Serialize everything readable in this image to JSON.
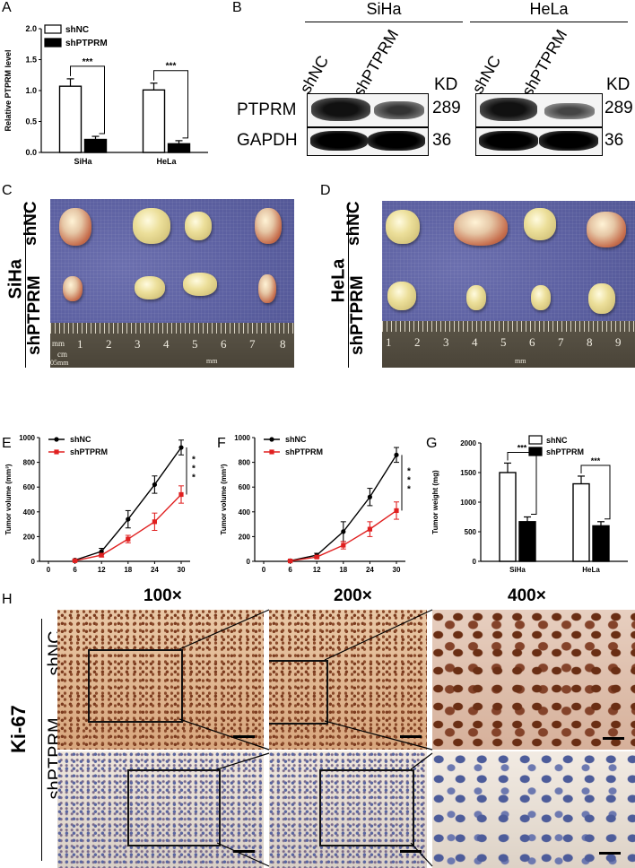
{
  "panels": {
    "A": "A",
    "B": "B",
    "C": "C",
    "D": "D",
    "E": "E",
    "F": "F",
    "G": "G",
    "H": "H"
  },
  "panel_a": {
    "ylabel": "Relative PTPRM level",
    "legend": [
      "shNC",
      "shPTPRM"
    ],
    "sig": [
      "***",
      "***"
    ]
  },
  "panel_b": {
    "cell_lines": [
      "SiHa",
      "HeLa"
    ],
    "lane_labels": [
      "shNC",
      "shPTPRM"
    ],
    "kd_label": "KD",
    "proteins": [
      "PTPRM",
      "GAPDH"
    ],
    "sizes": [
      "289",
      "36"
    ]
  },
  "panel_c": {
    "cell_line": "SiHa",
    "rows": [
      "shNC",
      "shPTPRM"
    ],
    "ruler_numbers": [
      "1",
      "2",
      "3",
      "4",
      "5",
      "6",
      "7",
      "8"
    ],
    "ruler_marks": [
      "mm",
      "cm",
      "05mm",
      "mm"
    ]
  },
  "panel_d": {
    "cell_line": "HeLa",
    "rows": [
      "shNC",
      "shPTPRM"
    ],
    "ruler_numbers": [
      "1",
      "2",
      "3",
      "4",
      "5",
      "6",
      "7",
      "8",
      "9"
    ],
    "ruler_marks": [
      "mm"
    ]
  },
  "panel_e": {
    "ylabel": "Tumor volume (mm³)",
    "legend": [
      "shNC",
      "shPTPRM"
    ],
    "sig": "***"
  },
  "panel_f": {
    "ylabel": "Tumor volume (mm³)",
    "legend": [
      "shNC",
      "shPTPRM"
    ],
    "sig": "***"
  },
  "panel_g": {
    "ylabel": "Tumor weight (mg)",
    "legend": [
      "shNC",
      "shPTPRM"
    ],
    "sig": [
      "***",
      "***"
    ]
  },
  "panel_h": {
    "magnifications": [
      "100×",
      "200×",
      "400×"
    ],
    "stain": "Ki-67",
    "rows": [
      "shNC",
      "shPTPRM"
    ]
  },
  "chart_data": [
    {
      "id": "A",
      "type": "bar",
      "categories": [
        "SiHa",
        "HeLa"
      ],
      "series": [
        {
          "name": "shNC",
          "values": [
            1.07,
            1.01
          ],
          "errors": [
            0.12,
            0.11
          ]
        },
        {
          "name": "shPTPRM",
          "values": [
            0.21,
            0.14
          ],
          "errors": [
            0.05,
            0.05
          ]
        }
      ],
      "ylabel": "Relative PTPRM level",
      "ylim": [
        0,
        2.0
      ],
      "yticks": [
        "0.0",
        "0.5",
        "1.0",
        "1.5",
        "2.0"
      ],
      "colors": {
        "shNC": "#ffffff",
        "shPTPRM": "#000000"
      }
    },
    {
      "id": "E",
      "type": "line",
      "x": [
        0,
        6,
        12,
        18,
        24,
        30
      ],
      "xticks": [
        "0",
        "6",
        "12",
        "18",
        "24",
        "30"
      ],
      "series": [
        {
          "name": "shNC",
          "x": [
            6,
            12,
            18,
            24,
            30
          ],
          "values": [
            10,
            80,
            340,
            620,
            920
          ],
          "errors": [
            5,
            25,
            70,
            70,
            60
          ],
          "color": "#000000"
        },
        {
          "name": "shPTPRM",
          "x": [
            6,
            12,
            18,
            24,
            30
          ],
          "values": [
            5,
            50,
            180,
            320,
            540
          ],
          "errors": [
            3,
            15,
            30,
            70,
            70
          ],
          "color": "#e02020"
        }
      ],
      "ylabel": "Tumor volume (mm³)",
      "ylim": [
        0,
        1000
      ],
      "yticks": [
        "0",
        "200",
        "400",
        "600",
        "800",
        "1000"
      ]
    },
    {
      "id": "F",
      "type": "line",
      "x": [
        0,
        6,
        12,
        18,
        24,
        30
      ],
      "xticks": [
        "0",
        "6",
        "12",
        "18",
        "24",
        "30"
      ],
      "series": [
        {
          "name": "shNC",
          "x": [
            6,
            12,
            18,
            24,
            30
          ],
          "values": [
            5,
            50,
            240,
            520,
            860
          ],
          "errors": [
            3,
            15,
            80,
            70,
            60
          ],
          "color": "#000000"
        },
        {
          "name": "shPTPRM",
          "x": [
            6,
            12,
            18,
            24,
            30
          ],
          "values": [
            3,
            35,
            130,
            260,
            410
          ],
          "errors": [
            2,
            10,
            30,
            60,
            70
          ],
          "color": "#e02020"
        }
      ],
      "ylabel": "Tumor volume (mm³)",
      "ylim": [
        0,
        1000
      ],
      "yticks": [
        "0",
        "200",
        "400",
        "600",
        "800",
        "1000"
      ]
    },
    {
      "id": "G",
      "type": "bar",
      "categories": [
        "SiHa",
        "HeLa"
      ],
      "series": [
        {
          "name": "shNC",
          "values": [
            1500,
            1310
          ],
          "errors": [
            160,
            130
          ]
        },
        {
          "name": "shPTPRM",
          "values": [
            670,
            600
          ],
          "errors": [
            80,
            70
          ]
        }
      ],
      "ylabel": "Tumor weight (mg)",
      "ylim": [
        0,
        2000
      ],
      "yticks": [
        "0",
        "500",
        "1000",
        "1500",
        "2000"
      ],
      "colors": {
        "shNC": "#ffffff",
        "shPTPRM": "#000000"
      }
    }
  ]
}
